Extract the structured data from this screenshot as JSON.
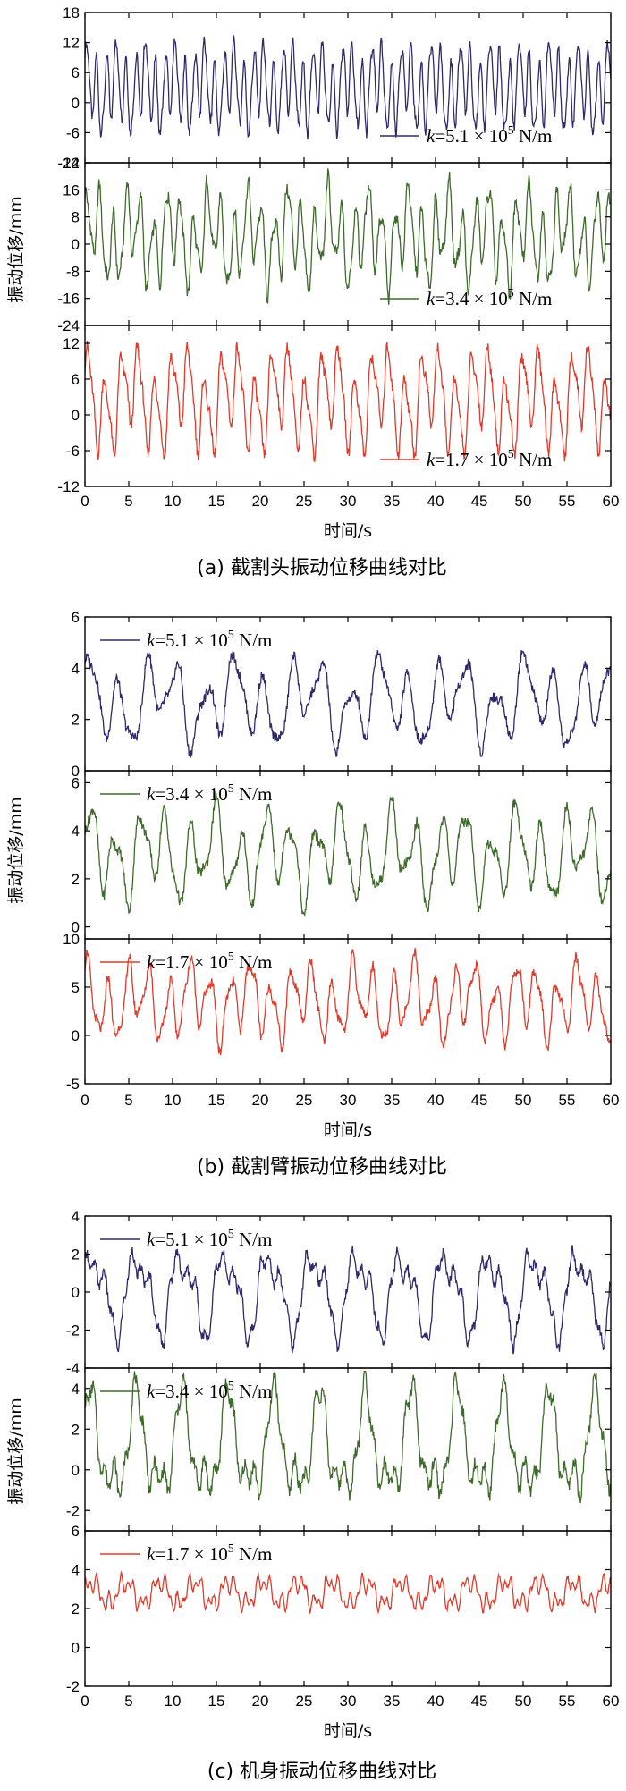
{
  "chart_data": [
    {
      "group": "a",
      "type": "line",
      "caption": "(a)  截割头振动位移曲线对比",
      "xlabel": "时间/s",
      "ylabel": "振动位移/mm",
      "xlim": [
        0,
        60
      ],
      "xticks": [
        "0",
        "5",
        "10",
        "15",
        "20",
        "25",
        "30",
        "35",
        "40",
        "45",
        "50",
        "55",
        "60"
      ],
      "legend_position": "bottom-right",
      "subplots": [
        {
          "name": "k=5.1×10⁵ N/m",
          "legend": {
            "k": "k",
            "eq": "=5.1 × 10",
            "exp": "5",
            "unit": " N/m"
          },
          "color": "#2e2a6b",
          "ylim": [
            -12,
            18
          ],
          "yticks": [
            "18",
            "12",
            "6",
            "0",
            "-6",
            "-12"
          ],
          "series": {
            "base": 3,
            "amp": 8.5,
            "components": [
              [
                1.0,
                5.6,
                0.4
              ],
              [
                0.45,
                1.9,
                1.2
              ],
              [
                0.25,
                9.3,
                2.1
              ]
            ]
          }
        },
        {
          "name": "k=3.4×10⁵ N/m",
          "legend": {
            "k": "k",
            "eq": "=3.4 × 10",
            "exp": "5",
            "unit": " N/m"
          },
          "color": "#3e6b2a",
          "ylim": [
            -24,
            24
          ],
          "yticks": [
            "24",
            "16",
            "8",
            "0",
            "-8",
            "-16",
            "-24"
          ],
          "series": {
            "base": 2,
            "amp": 14,
            "components": [
              [
                1.0,
                4.1,
                0.9
              ],
              [
                0.55,
                1.4,
                0.3
              ],
              [
                0.3,
                7.7,
                1.7
              ]
            ]
          }
        },
        {
          "name": "k=1.7×10⁵ N/m",
          "legend": {
            "k": "k",
            "eq": "=1.7 × 10",
            "exp": "5",
            "unit": " N/m"
          },
          "color": "#e03a2a",
          "ylim": [
            -12,
            15
          ],
          "yticks": [
            "12",
            "6",
            "0",
            "-6",
            "-12"
          ],
          "series": {
            "base": 2.5,
            "amp": 8.5,
            "components": [
              [
                1.0,
                3.3,
                0.2
              ],
              [
                0.5,
                1.1,
                2.0
              ],
              [
                0.3,
                6.6,
                0.8
              ]
            ]
          }
        }
      ]
    },
    {
      "group": "b",
      "type": "line",
      "caption": "(b)  截割臂振动位移曲线对比",
      "xlabel": "时间/s",
      "ylabel": "振动位移/mm",
      "xlim": [
        0,
        60
      ],
      "xticks": [
        "0",
        "5",
        "10",
        "15",
        "20",
        "25",
        "30",
        "35",
        "40",
        "45",
        "50",
        "55",
        "60"
      ],
      "legend_position": "top-left",
      "subplots": [
        {
          "name": "k=5.1×10⁵ N/m",
          "legend": {
            "k": "k",
            "eq": "=5.1 × 10",
            "exp": "5",
            "unit": " N/m"
          },
          "color": "#2e2a6b",
          "ylim": [
            0,
            6
          ],
          "yticks": [
            "6",
            "4",
            "2",
            "0"
          ],
          "series": {
            "base": 2.7,
            "amp": 1.7,
            "components": [
              [
                1.0,
                1.9,
                0.5
              ],
              [
                0.6,
                0.75,
                1.3
              ],
              [
                0.35,
                3.4,
                2.2
              ]
            ]
          }
        },
        {
          "name": "k=3.4×10⁵ N/m",
          "legend": {
            "k": "k",
            "eq": "=3.4 × 10",
            "exp": "5",
            "unit": " N/m"
          },
          "color": "#3e6b2a",
          "ylim": [
            -0.5,
            6.5
          ],
          "yticks": [
            "6",
            "4",
            "2",
            "0"
          ],
          "series": {
            "base": 3.0,
            "amp": 1.9,
            "components": [
              [
                1.0,
                2.2,
                0.1
              ],
              [
                0.5,
                0.9,
                1.0
              ],
              [
                0.35,
                4.1,
                2.6
              ]
            ]
          }
        },
        {
          "name": "k=1.7×10⁵ N/m",
          "legend": {
            "k": "k",
            "eq": "=1.7 × 10",
            "exp": "5",
            "unit": " N/m"
          },
          "color": "#e03a2a",
          "ylim": [
            -5,
            10
          ],
          "yticks": [
            "10",
            "5",
            "0",
            "-5"
          ],
          "series": {
            "base": 3.5,
            "amp": 4.0,
            "components": [
              [
                1.0,
                2.7,
                0.7
              ],
              [
                0.5,
                1.0,
                1.8
              ],
              [
                0.35,
                5.2,
                0.3
              ]
            ]
          }
        }
      ]
    },
    {
      "group": "c",
      "type": "line",
      "caption": "(c)  机身振动位移曲线对比",
      "xlabel": "时间/s",
      "ylabel": "振动位移/mm",
      "xlim": [
        0,
        60
      ],
      "xticks": [
        "0",
        "5",
        "10",
        "15",
        "20",
        "25",
        "30",
        "35",
        "40",
        "45",
        "50",
        "55",
        "60"
      ],
      "legend_position": "top-left",
      "subplots": [
        {
          "name": "k=5.1×10⁵ N/m",
          "legend": {
            "k": "k",
            "eq": "=5.1 × 10",
            "exp": "5",
            "unit": " N/m"
          },
          "color": "#2e2a6b",
          "ylim": [
            -4,
            4
          ],
          "yticks": [
            "4",
            "2",
            "0",
            "-2",
            "-4"
          ],
          "series": {
            "base": 0,
            "amp": 2.3,
            "components": [
              [
                1.0,
                1.25,
                0.3
              ],
              [
                0.45,
                2.5,
                1.5
              ],
              [
                0.25,
                6.0,
                0.9
              ]
            ]
          }
        },
        {
          "name": "k=3.4×10⁵ N/m",
          "legend": {
            "k": "k",
            "eq": "=3.4 × 10",
            "exp": "5",
            "unit": " N/m"
          },
          "color": "#3e6b2a",
          "ylim": [
            -3,
            5
          ],
          "yticks": [
            "4",
            "2",
            "0",
            "-2"
          ],
          "series": {
            "base": 1.0,
            "amp": 2.8,
            "components": [
              [
                1.0,
                1.2,
                0.8
              ],
              [
                0.5,
                2.4,
                0.2
              ],
              [
                0.3,
                5.5,
                2.0
              ]
            ]
          }
        },
        {
          "name": "k=1.7×10⁵ N/m",
          "legend": {
            "k": "k",
            "eq": "=1.7 × 10",
            "exp": "5",
            "unit": " N/m"
          },
          "color": "#e03a2a",
          "ylim": [
            -2,
            6
          ],
          "yticks": [
            "6",
            "4",
            "2",
            "0",
            "-2"
          ],
          "series": {
            "base": 2.8,
            "amp": 0.9,
            "components": [
              [
                1.0,
                1.6,
                0.4
              ],
              [
                0.6,
                4.8,
                1.1
              ],
              [
                0.5,
                8.9,
                2.3
              ]
            ]
          }
        }
      ]
    }
  ]
}
